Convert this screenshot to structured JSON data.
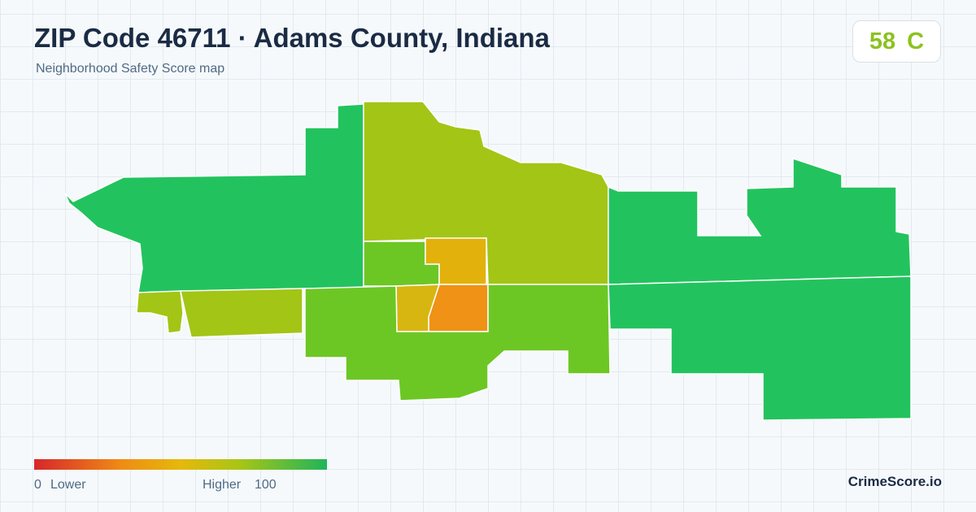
{
  "header": {
    "title": "ZIP Code 46711 · Adams County, Indiana",
    "subtitle": "Neighborhood Safety Score map"
  },
  "score": {
    "value": 58,
    "grade": "C"
  },
  "legend": {
    "min": 0,
    "min_label": "Lower",
    "max_label": "Higher",
    "max": 100
  },
  "footer": {
    "brand": "CrimeScore.io"
  }
}
